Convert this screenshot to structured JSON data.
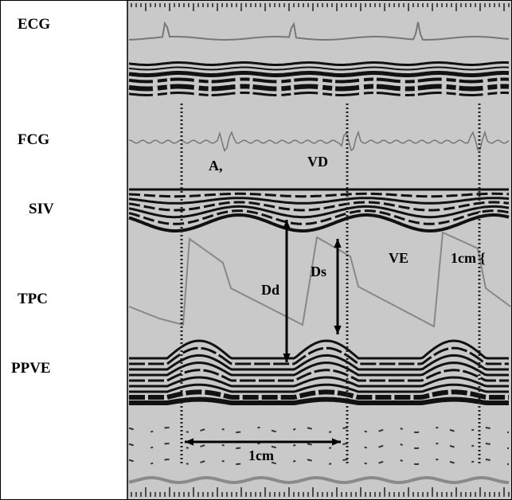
{
  "labels": {
    "ecg": "ECG",
    "fcg": "FCG",
    "siv": "SIV",
    "tpc": "TPC",
    "ppve": "PPVE"
  },
  "annotations": {
    "a1": "A,",
    "vd": "VD",
    "ve": "VE",
    "scale_vertical": "1cm {",
    "dd": "Dd",
    "ds": "Ds",
    "scale_horizontal": "1cm"
  }
}
